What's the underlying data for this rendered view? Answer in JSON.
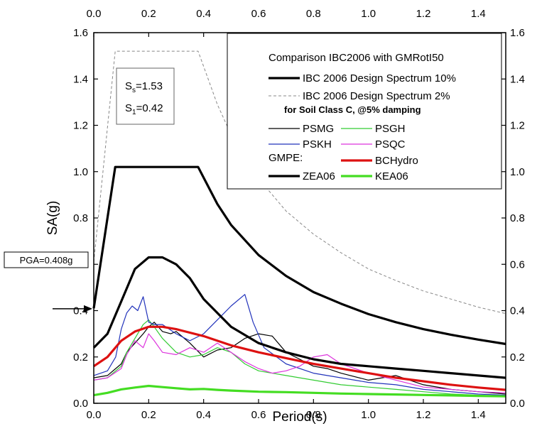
{
  "chart_data": {
    "type": "line",
    "xlabel": "Period(s)",
    "ylabel": "SA(g)",
    "xlim": [
      0,
      1.5
    ],
    "ylim": [
      0,
      1.6
    ],
    "xticks": [
      "0.0",
      "0.2",
      "0.4",
      "0.6",
      "0.8",
      "1.0",
      "1.2",
      "1.4"
    ],
    "yticks": [
      "0.0",
      "0.2",
      "0.4",
      "0.6",
      "0.8",
      "1.0",
      "1.2",
      "1.4",
      "1.6"
    ],
    "mirror_axes": true,
    "grid": false,
    "legend_placement": "top-right",
    "legend_title": "Comparison IBC2006 with GMRotI50",
    "legend_subtitle": "for Soil Class C, @5% damping",
    "gmpe_label": "GMPE:",
    "param_box": {
      "ss_symbol": "S",
      "ss_sub": "s",
      "ss_value": "=1.53",
      "s1_symbol": "S",
      "s1_sub": "1",
      "s1_value": "=0.42"
    },
    "pga_annotation": {
      "text": "PGA=0.408g",
      "value": 0.408
    },
    "series": [
      {
        "name": "IBC 2006 Design Spectrum 10%",
        "color": "#000000",
        "style": "thick",
        "x": [
          0,
          0.078,
          0.1,
          0.2,
          0.3,
          0.38,
          0.45,
          0.5,
          0.6,
          0.7,
          0.8,
          0.9,
          1.0,
          1.1,
          1.2,
          1.3,
          1.4,
          1.5
        ],
        "y": [
          0.41,
          1.02,
          1.02,
          1.02,
          1.02,
          1.02,
          0.86,
          0.77,
          0.64,
          0.55,
          0.48,
          0.43,
          0.385,
          0.35,
          0.32,
          0.296,
          0.275,
          0.256
        ]
      },
      {
        "name": "IBC 2006 Design Spectrum  2%",
        "color": "#888888",
        "style": "dashed",
        "x": [
          0,
          0.078,
          0.1,
          0.2,
          0.3,
          0.38,
          0.45,
          0.5,
          0.6,
          0.7,
          0.8,
          0.9,
          1.0,
          1.1,
          1.2,
          1.3,
          1.4,
          1.5
        ],
        "y": [
          0.61,
          1.52,
          1.52,
          1.52,
          1.52,
          1.52,
          1.29,
          1.16,
          0.97,
          0.83,
          0.73,
          0.65,
          0.58,
          0.53,
          0.485,
          0.45,
          0.415,
          0.387
        ]
      },
      {
        "name": "PSMG",
        "color": "#000000",
        "style": "thin",
        "x": [
          0,
          0.05,
          0.1,
          0.12,
          0.15,
          0.18,
          0.2,
          0.22,
          0.25,
          0.28,
          0.3,
          0.35,
          0.4,
          0.45,
          0.5,
          0.55,
          0.6,
          0.65,
          0.7,
          0.75,
          0.8,
          0.85,
          0.9,
          1.0,
          1.1,
          1.2,
          1.3,
          1.4,
          1.5
        ],
        "y": [
          0.11,
          0.12,
          0.17,
          0.22,
          0.26,
          0.3,
          0.33,
          0.35,
          0.31,
          0.3,
          0.31,
          0.26,
          0.2,
          0.23,
          0.24,
          0.28,
          0.3,
          0.29,
          0.22,
          0.19,
          0.16,
          0.15,
          0.13,
          0.1,
          0.12,
          0.08,
          0.06,
          0.05,
          0.04
        ]
      },
      {
        "name": "PSGH",
        "color": "#33cc33",
        "style": "thin",
        "x": [
          0,
          0.05,
          0.1,
          0.12,
          0.15,
          0.18,
          0.2,
          0.22,
          0.25,
          0.3,
          0.35,
          0.4,
          0.45,
          0.5,
          0.55,
          0.6,
          0.7,
          0.8,
          0.9,
          1.0,
          1.1,
          1.2,
          1.3,
          1.4,
          1.5
        ],
        "y": [
          0.1,
          0.11,
          0.16,
          0.22,
          0.28,
          0.34,
          0.36,
          0.33,
          0.28,
          0.22,
          0.2,
          0.21,
          0.24,
          0.22,
          0.17,
          0.14,
          0.12,
          0.1,
          0.08,
          0.07,
          0.06,
          0.05,
          0.04,
          0.035,
          0.03
        ]
      },
      {
        "name": "PSKH",
        "color": "#2233bb",
        "style": "thin",
        "x": [
          0,
          0.05,
          0.08,
          0.1,
          0.12,
          0.14,
          0.16,
          0.18,
          0.2,
          0.22,
          0.25,
          0.3,
          0.35,
          0.4,
          0.45,
          0.5,
          0.55,
          0.58,
          0.62,
          0.7,
          0.8,
          0.9,
          1.0,
          1.1,
          1.2,
          1.3,
          1.4,
          1.5
        ],
        "y": [
          0.12,
          0.14,
          0.2,
          0.32,
          0.39,
          0.42,
          0.4,
          0.46,
          0.35,
          0.34,
          0.34,
          0.3,
          0.27,
          0.3,
          0.36,
          0.42,
          0.47,
          0.35,
          0.24,
          0.17,
          0.13,
          0.11,
          0.09,
          0.08,
          0.06,
          0.05,
          0.04,
          0.035
        ]
      },
      {
        "name": "PSQC",
        "color": "#dd33dd",
        "style": "thin",
        "x": [
          0,
          0.05,
          0.1,
          0.12,
          0.15,
          0.18,
          0.2,
          0.22,
          0.25,
          0.3,
          0.35,
          0.4,
          0.45,
          0.5,
          0.55,
          0.6,
          0.65,
          0.7,
          0.75,
          0.8,
          0.85,
          0.9,
          1.0,
          1.1,
          1.2,
          1.3,
          1.4,
          1.5
        ],
        "y": [
          0.1,
          0.11,
          0.15,
          0.21,
          0.27,
          0.24,
          0.3,
          0.27,
          0.22,
          0.21,
          0.24,
          0.22,
          0.26,
          0.22,
          0.18,
          0.15,
          0.13,
          0.14,
          0.16,
          0.2,
          0.21,
          0.17,
          0.13,
          0.1,
          0.07,
          0.06,
          0.05,
          0.045
        ]
      },
      {
        "name": "BCHydro",
        "color": "#dd1111",
        "style": "thick",
        "x": [
          0,
          0.05,
          0.1,
          0.15,
          0.2,
          0.25,
          0.3,
          0.4,
          0.5,
          0.6,
          0.7,
          0.8,
          0.9,
          1.0,
          1.1,
          1.2,
          1.3,
          1.4,
          1.5
        ],
        "y": [
          0.16,
          0.2,
          0.27,
          0.31,
          0.33,
          0.33,
          0.32,
          0.29,
          0.25,
          0.22,
          0.195,
          0.17,
          0.15,
          0.13,
          0.11,
          0.095,
          0.08,
          0.068,
          0.058
        ]
      },
      {
        "name": "ZEA06",
        "color": "#000000",
        "style": "thick",
        "x": [
          0,
          0.05,
          0.1,
          0.15,
          0.2,
          0.25,
          0.3,
          0.35,
          0.4,
          0.5,
          0.6,
          0.7,
          0.8,
          0.9,
          1.0,
          1.1,
          1.2,
          1.3,
          1.4,
          1.5
        ],
        "y": [
          0.24,
          0.3,
          0.44,
          0.58,
          0.63,
          0.63,
          0.6,
          0.54,
          0.45,
          0.33,
          0.26,
          0.22,
          0.19,
          0.17,
          0.16,
          0.15,
          0.14,
          0.13,
          0.12,
          0.11
        ]
      },
      {
        "name": "KEA06",
        "color": "#44dd22",
        "style": "thick",
        "x": [
          0,
          0.05,
          0.1,
          0.15,
          0.2,
          0.25,
          0.3,
          0.35,
          0.4,
          0.45,
          0.5,
          0.6,
          0.7,
          0.8,
          0.9,
          1.0,
          1.1,
          1.2,
          1.3,
          1.4,
          1.5
        ],
        "y": [
          0.035,
          0.045,
          0.06,
          0.068,
          0.075,
          0.07,
          0.065,
          0.06,
          0.062,
          0.058,
          0.055,
          0.05,
          0.048,
          0.045,
          0.042,
          0.04,
          0.038,
          0.036,
          0.034,
          0.032,
          0.03
        ]
      }
    ]
  }
}
